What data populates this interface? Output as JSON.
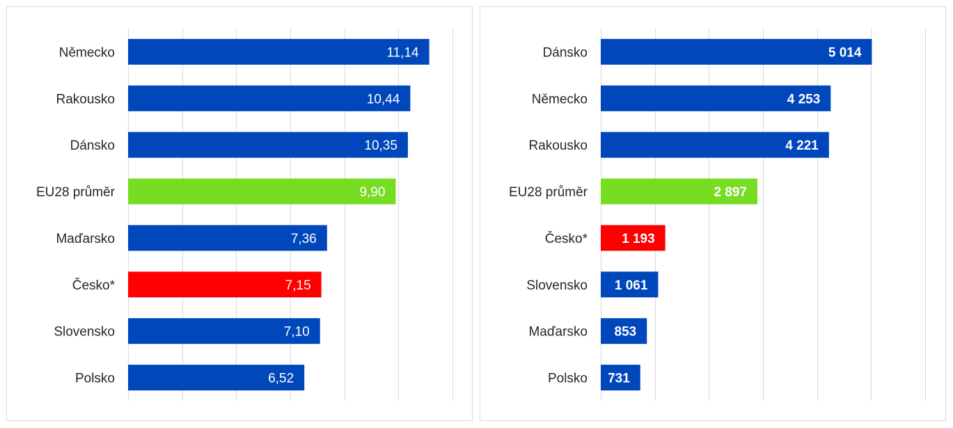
{
  "colors": {
    "bar_default": "#0047BB",
    "bar_eu": "#77DD22",
    "bar_cz": "#FF0000",
    "grid": "#D9D9D9"
  },
  "chart_data": [
    {
      "type": "bar",
      "orientation": "horizontal",
      "categories": [
        "Německo",
        "Rakousko",
        "Dánsko",
        "EU28 průměr",
        "Maďarsko",
        "Česko*",
        "Slovensko",
        "Polsko"
      ],
      "values": [
        11.14,
        10.44,
        10.35,
        9.9,
        7.36,
        7.15,
        7.1,
        6.52
      ],
      "value_labels": [
        "11,14",
        "10,44",
        "10,35",
        "9,90",
        "7,36",
        "7,15",
        "7,10",
        "6,52"
      ],
      "bar_colors": [
        "#0047BB",
        "#0047BB",
        "#0047BB",
        "#77DD22",
        "#0047BB",
        "#FF0000",
        "#0047BB",
        "#0047BB"
      ],
      "xlim": [
        0,
        12
      ],
      "grid": true,
      "title": "",
      "xlabel": "",
      "ylabel": ""
    },
    {
      "type": "bar",
      "orientation": "horizontal",
      "categories": [
        "Dánsko",
        "Německo",
        "Rakousko",
        "EU28 průměr",
        "Česko*",
        "Slovensko",
        "Maďarsko",
        "Polsko"
      ],
      "values": [
        5014,
        4253,
        4221,
        2897,
        1193,
        1061,
        853,
        731
      ],
      "value_labels": [
        "5 014",
        "4 253",
        "4 221",
        "2 897",
        "1 193",
        "1 061",
        "853",
        "731"
      ],
      "bar_colors": [
        "#0047BB",
        "#0047BB",
        "#0047BB",
        "#77DD22",
        "#FF0000",
        "#0047BB",
        "#0047BB",
        "#0047BB"
      ],
      "xlim": [
        0,
        6000
      ],
      "grid": true,
      "title": "",
      "xlabel": "",
      "ylabel": ""
    }
  ]
}
